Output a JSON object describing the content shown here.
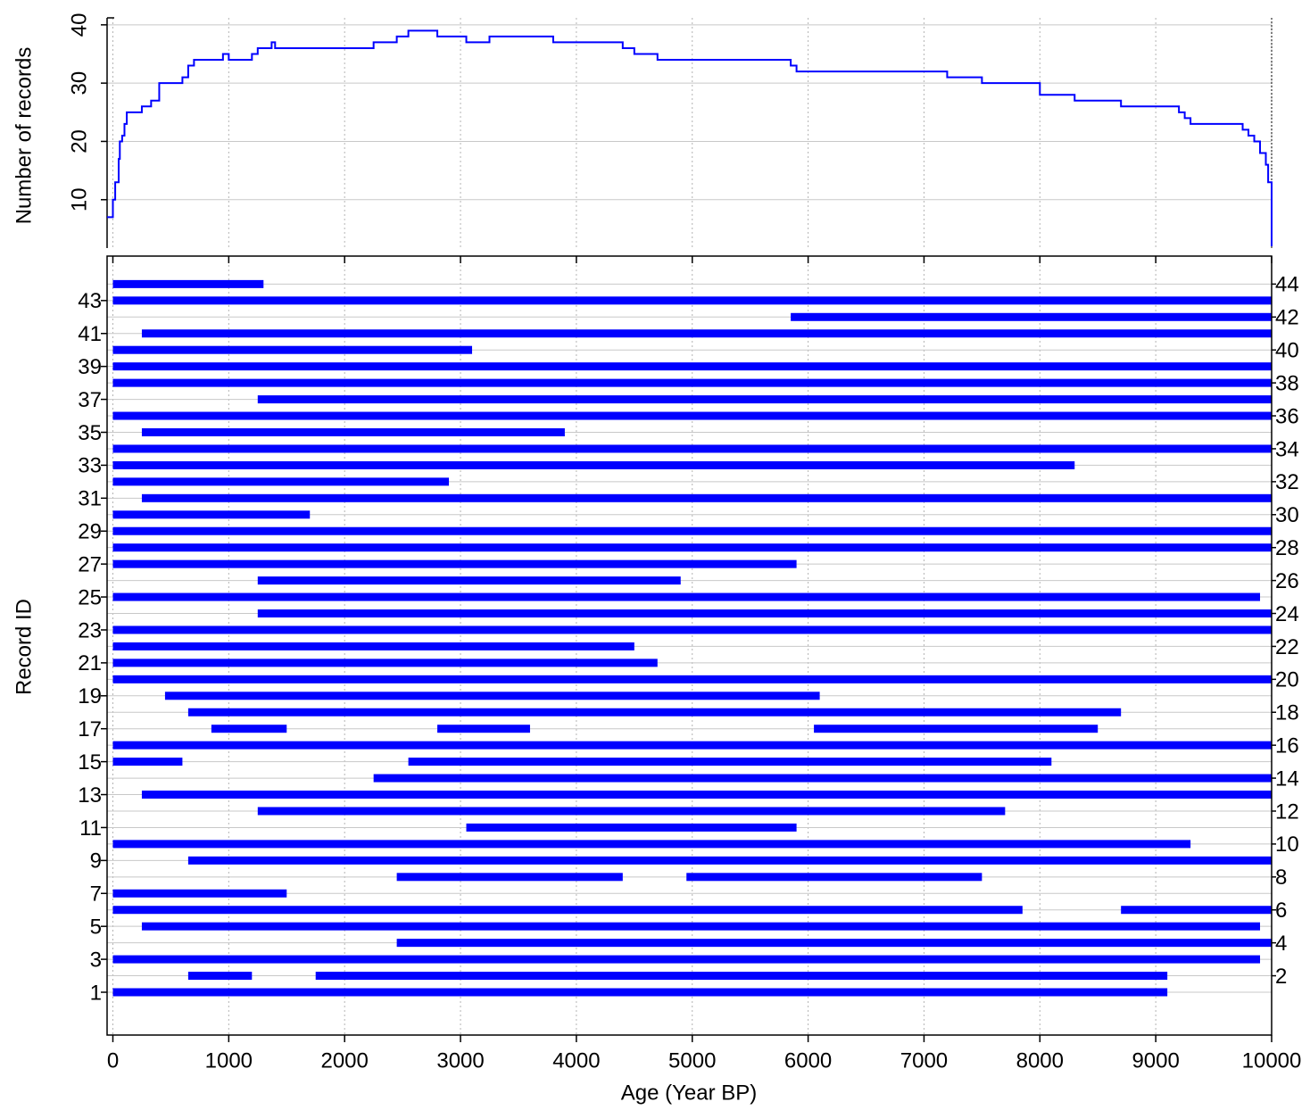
{
  "chart_data": [
    {
      "type": "step",
      "y_label": "Number of records",
      "color": "#0000ff",
      "grid": true,
      "xlim": [
        -50,
        10000
      ],
      "xticks": [
        0,
        1000,
        2000,
        3000,
        4000,
        5000,
        6000,
        7000,
        8000,
        9000,
        10000
      ],
      "ylim": [
        1.7,
        41.2
      ],
      "yticks": [
        10,
        20,
        30,
        40
      ],
      "x": [
        -50,
        0,
        20,
        50,
        60,
        80,
        100,
        120,
        250,
        330,
        400,
        600,
        650,
        700,
        950,
        1000,
        1200,
        1250,
        1370,
        1400,
        2250,
        2450,
        2550,
        2800,
        3050,
        3250,
        3800,
        4400,
        4500,
        4700,
        5850,
        5900,
        7200,
        7500,
        8000,
        8300,
        8700,
        9200,
        9250,
        9300,
        9750,
        9800,
        9850,
        9900,
        9950,
        9970,
        10000
      ],
      "values": [
        7,
        10,
        13,
        17,
        20,
        21,
        23,
        25,
        26,
        27,
        30,
        31,
        33,
        34,
        35,
        34,
        35,
        36,
        37,
        36,
        37,
        38,
        39,
        38,
        37,
        38,
        37,
        36,
        35,
        34,
        33,
        32,
        31,
        30,
        28,
        27,
        26,
        25,
        24,
        23,
        22,
        21,
        20,
        18,
        16,
        13,
        2
      ]
    },
    {
      "type": "range",
      "x_label": "Age (Year BP)",
      "y_label": "Record ID",
      "color": "#0000ff",
      "grid": true,
      "xlim": [
        -50,
        10000
      ],
      "xticks": [
        0,
        1000,
        2000,
        3000,
        4000,
        5000,
        6000,
        7000,
        8000,
        9000,
        10000
      ],
      "ylim": [
        -1.6,
        45.7
      ],
      "yticks": [
        1,
        3,
        5,
        7,
        9,
        11,
        13,
        15,
        17,
        19,
        21,
        23,
        25,
        27,
        29,
        31,
        33,
        35,
        37,
        39,
        41,
        43
      ],
      "y2ticks": [
        2,
        4,
        6,
        8,
        10,
        12,
        14,
        16,
        18,
        20,
        22,
        24,
        26,
        28,
        30,
        32,
        34,
        36,
        38,
        40,
        42,
        44
      ],
      "records": [
        {
          "id": 1,
          "spans": [
            [
              0,
              9100
            ]
          ]
        },
        {
          "id": 2,
          "spans": [
            [
              650,
              1200
            ],
            [
              1750,
              9100
            ]
          ]
        },
        {
          "id": 3,
          "spans": [
            [
              0,
              9900
            ]
          ]
        },
        {
          "id": 4,
          "spans": [
            [
              2450,
              10000
            ]
          ]
        },
        {
          "id": 5,
          "spans": [
            [
              250,
              9900
            ]
          ]
        },
        {
          "id": 6,
          "spans": [
            [
              0,
              7850
            ],
            [
              8700,
              10000
            ]
          ]
        },
        {
          "id": 7,
          "spans": [
            [
              0,
              1500
            ]
          ]
        },
        {
          "id": 8,
          "spans": [
            [
              2450,
              4400
            ],
            [
              4950,
              7500
            ]
          ]
        },
        {
          "id": 9,
          "spans": [
            [
              650,
              10000
            ]
          ]
        },
        {
          "id": 10,
          "spans": [
            [
              0,
              9300
            ]
          ]
        },
        {
          "id": 11,
          "spans": [
            [
              3050,
              5900
            ]
          ]
        },
        {
          "id": 12,
          "spans": [
            [
              1250,
              7700
            ]
          ]
        },
        {
          "id": 13,
          "spans": [
            [
              250,
              10000
            ]
          ]
        },
        {
          "id": 14,
          "spans": [
            [
              2250,
              10000
            ]
          ]
        },
        {
          "id": 15,
          "spans": [
            [
              0,
              600
            ],
            [
              2550,
              8100
            ]
          ]
        },
        {
          "id": 16,
          "spans": [
            [
              0,
              10000
            ]
          ]
        },
        {
          "id": 17,
          "spans": [
            [
              850,
              1500
            ],
            [
              2800,
              3600
            ],
            [
              6050,
              8500
            ]
          ]
        },
        {
          "id": 18,
          "spans": [
            [
              650,
              8700
            ]
          ]
        },
        {
          "id": 19,
          "spans": [
            [
              450,
              6100
            ]
          ]
        },
        {
          "id": 20,
          "spans": [
            [
              0,
              10000
            ]
          ]
        },
        {
          "id": 21,
          "spans": [
            [
              0,
              4700
            ]
          ]
        },
        {
          "id": 22,
          "spans": [
            [
              0,
              4500
            ]
          ]
        },
        {
          "id": 23,
          "spans": [
            [
              0,
              10000
            ]
          ]
        },
        {
          "id": 24,
          "spans": [
            [
              1250,
              10000
            ]
          ]
        },
        {
          "id": 25,
          "spans": [
            [
              0,
              9900
            ]
          ]
        },
        {
          "id": 26,
          "spans": [
            [
              1250,
              4900
            ]
          ]
        },
        {
          "id": 27,
          "spans": [
            [
              0,
              5900
            ]
          ]
        },
        {
          "id": 28,
          "spans": [
            [
              0,
              10000
            ]
          ]
        },
        {
          "id": 29,
          "spans": [
            [
              0,
              10000
            ]
          ]
        },
        {
          "id": 30,
          "spans": [
            [
              0,
              1700
            ]
          ]
        },
        {
          "id": 31,
          "spans": [
            [
              250,
              10000
            ]
          ]
        },
        {
          "id": 32,
          "spans": [
            [
              0,
              2900
            ]
          ]
        },
        {
          "id": 33,
          "spans": [
            [
              0,
              8300
            ]
          ]
        },
        {
          "id": 34,
          "spans": [
            [
              0,
              10000
            ]
          ]
        },
        {
          "id": 35,
          "spans": [
            [
              250,
              3900
            ]
          ]
        },
        {
          "id": 36,
          "spans": [
            [
              0,
              10000
            ]
          ]
        },
        {
          "id": 37,
          "spans": [
            [
              1250,
              10000
            ]
          ]
        },
        {
          "id": 38,
          "spans": [
            [
              0,
              10000
            ]
          ]
        },
        {
          "id": 39,
          "spans": [
            [
              0,
              10000
            ]
          ]
        },
        {
          "id": 40,
          "spans": [
            [
              0,
              3100
            ]
          ]
        },
        {
          "id": 41,
          "spans": [
            [
              250,
              10000
            ]
          ]
        },
        {
          "id": 42,
          "spans": [
            [
              5850,
              10000
            ]
          ]
        },
        {
          "id": 43,
          "spans": [
            [
              0,
              10000
            ]
          ]
        },
        {
          "id": 44,
          "spans": [
            [
              0,
              1300
            ]
          ]
        }
      ]
    }
  ]
}
